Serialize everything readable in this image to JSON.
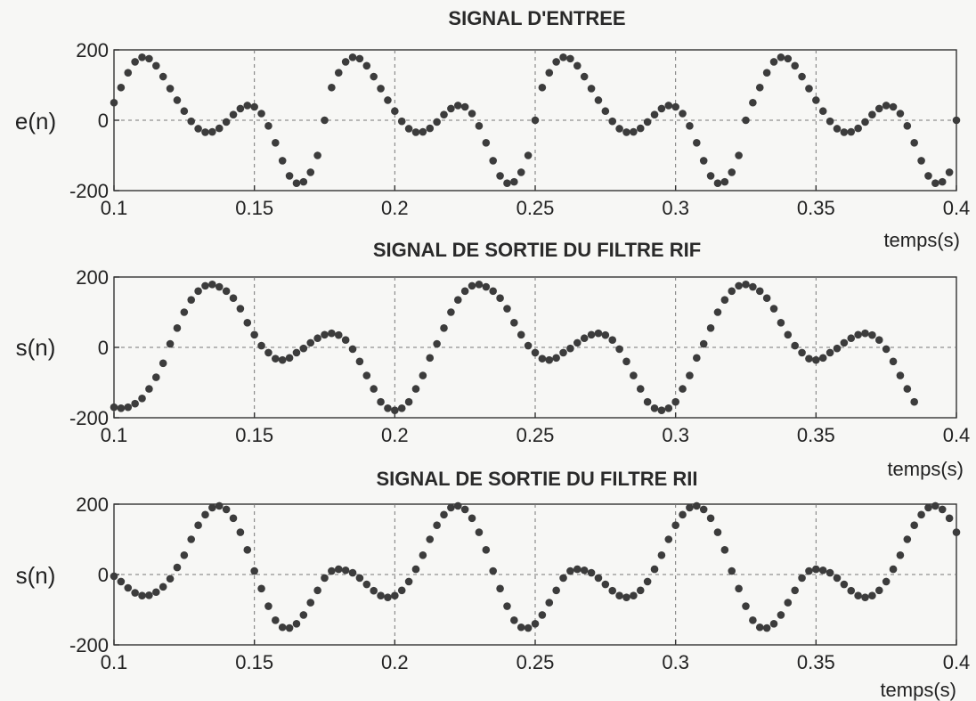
{
  "chart_data": [
    {
      "type": "scatter",
      "title": "SIGNAL D'ENTREE",
      "ylabel": "e(n)",
      "xlabel": "temps(s)",
      "xlim": [
        0.1,
        0.4
      ],
      "ylim": [
        -200,
        200
      ],
      "xticks": [
        "0.1",
        "0.15",
        "0.2",
        "0.25",
        "0.3",
        "0.35",
        "0.4"
      ],
      "yticks": [
        "200",
        "0",
        "-200"
      ],
      "grid": true,
      "sample_period": 0.0025,
      "points_x": [
        0.1,
        0.1025,
        0.105,
        0.1075,
        0.11,
        0.1125,
        0.115,
        0.1175,
        0.12,
        0.1225,
        0.125,
        0.1275,
        0.13,
        0.1325,
        0.135,
        0.1375,
        0.14,
        0.1425,
        0.145,
        0.1475,
        0.15,
        0.1525,
        0.155,
        0.1575,
        0.16,
        0.1625,
        0.165,
        0.1675,
        0.17,
        0.1725,
        0.175,
        0.1775,
        0.18,
        0.1825,
        0.185,
        0.1875,
        0.19,
        0.1925,
        0.195,
        0.1975,
        0.2,
        0.2025,
        0.205,
        0.2075,
        0.21,
        0.2125,
        0.215,
        0.2175,
        0.22,
        0.2225,
        0.225,
        0.2275,
        0.23,
        0.2325,
        0.235,
        0.2375,
        0.24,
        0.2425,
        0.245,
        0.2475,
        0.25,
        0.2525,
        0.255,
        0.2575,
        0.26,
        0.2625,
        0.265,
        0.2675,
        0.27,
        0.2725,
        0.275,
        0.2775,
        0.28,
        0.2825,
        0.285,
        0.2875,
        0.29,
        0.2925,
        0.295,
        0.2975,
        0.3,
        0.3025,
        0.305,
        0.3075,
        0.31,
        0.3125,
        0.315,
        0.3175,
        0.32,
        0.3225,
        0.325,
        0.3275,
        0.33,
        0.3325,
        0.335,
        0.3375,
        0.34,
        0.3425,
        0.345,
        0.3475,
        0.35,
        0.3525,
        0.355,
        0.3575,
        0.36,
        0.3625,
        0.365,
        0.3675,
        0.37,
        0.3725,
        0.375,
        0.3775,
        0.38,
        0.3825,
        0.385,
        0.3875,
        0.39,
        0.3925,
        0.395,
        0.3975,
        0.4
      ],
      "points_y": [
        50,
        93,
        135,
        166,
        179,
        175,
        155,
        124,
        90,
        57,
        26,
        -3,
        -24,
        -34,
        -33,
        -23,
        -5,
        16,
        33,
        42,
        38,
        19,
        -16,
        -64,
        -115,
        -158,
        -179,
        -175,
        -148,
        -100,
        0,
        93,
        135,
        166,
        179,
        175,
        155,
        124,
        90,
        57,
        26,
        -3,
        -24,
        -34,
        -33,
        -23,
        -5,
        16,
        33,
        42,
        38,
        19,
        -16,
        -64,
        -115,
        -158,
        -179,
        -175,
        -148,
        -100,
        0,
        93,
        135,
        166,
        179,
        175,
        155,
        124,
        90,
        57,
        26,
        -3,
        -24,
        -34,
        -33,
        -23,
        -5,
        16,
        33,
        42,
        38,
        19,
        -16,
        -64,
        -115,
        -158,
        -179,
        -175,
        -148,
        -100,
        0,
        50,
        93,
        135,
        166,
        179,
        175,
        155,
        124,
        90,
        57,
        26,
        -3,
        -24,
        -34,
        -33,
        -23,
        -5,
        16,
        33,
        42,
        38,
        19,
        -16,
        -64,
        -115,
        -158,
        -179,
        -175,
        -148,
        0
      ]
    },
    {
      "type": "scatter",
      "title": "SIGNAL DE SORTIE DU FILTRE RIF",
      "ylabel": "s(n)",
      "xlabel": "temps(s)",
      "xlim": [
        0.1,
        0.4
      ],
      "ylim": [
        -200,
        200
      ],
      "xticks": [
        "0.1",
        "0.15",
        "0.2",
        "0.25",
        "0.3",
        "0.35",
        "0.4"
      ],
      "yticks": [
        "200",
        "0",
        "-200"
      ],
      "grid": true
    },
    {
      "type": "scatter",
      "title": "SIGNAL DE SORTIE DU FILTRE RII",
      "ylabel": "s(n)",
      "xlabel": "temps(s)",
      "xlim": [
        0.1,
        0.4
      ],
      "ylim": [
        -200,
        200
      ],
      "xticks": [
        "0.1",
        "0.15",
        "0.2",
        "0.25",
        "0.3",
        "0.35",
        "0.4"
      ],
      "yticks": [
        "200",
        "0",
        "-200"
      ],
      "grid": true
    }
  ]
}
